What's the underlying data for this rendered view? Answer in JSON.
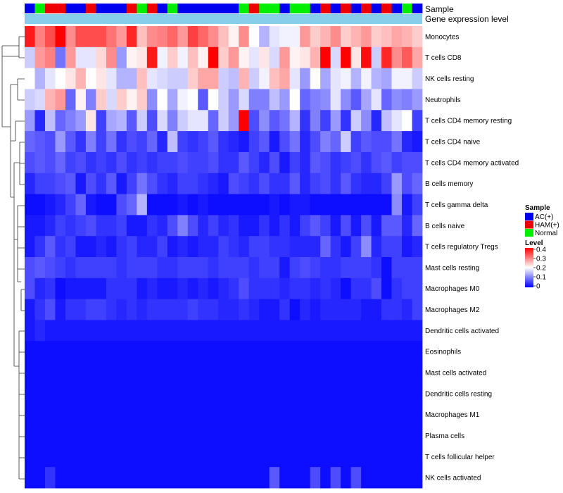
{
  "chart_data": {
    "type": "heatmap",
    "title": "",
    "annotation_labels": [
      "Sample",
      "Gene expression level"
    ],
    "sample_legend": {
      "title": "Sample",
      "entries": [
        {
          "name": "AC(+)",
          "color": "#0000EE"
        },
        {
          "name": "HAM(+)",
          "color": "#EE0000"
        },
        {
          "name": "Normal",
          "color": "#00EE00"
        }
      ]
    },
    "level_legend": {
      "title": "Level",
      "ticks": [
        "0.4",
        "0.3",
        "0.2",
        "0.1",
        "0"
      ],
      "colors": [
        "#FF0000",
        "#FFFFFF",
        "#0000FF"
      ],
      "range": [
        0,
        0.4
      ]
    },
    "expression_bar_color": "#87CEEB",
    "samples": [
      "AC(+)",
      "Normal",
      "HAM(+)",
      "HAM(+)",
      "AC(+)",
      "AC(+)",
      "HAM(+)",
      "AC(+)",
      "AC(+)",
      "AC(+)",
      "HAM(+)",
      "Normal",
      "HAM(+)",
      "AC(+)",
      "Normal",
      "AC(+)",
      "AC(+)",
      "AC(+)",
      "AC(+)",
      "AC(+)",
      "AC(+)",
      "Normal",
      "HAM(+)",
      "Normal",
      "Normal",
      "AC(+)",
      "Normal",
      "Normal",
      "AC(+)",
      "HAM(+)",
      "AC(+)",
      "HAM(+)",
      "AC(+)",
      "HAM(+)",
      "AC(+)",
      "HAM(+)",
      "AC(+)",
      "Normal",
      "AC(+)"
    ],
    "rows": [
      {
        "name": "Monocytes",
        "values": [
          0.38,
          0.3,
          0.34,
          0.4,
          0.29,
          0.34,
          0.34,
          0.34,
          0.31,
          0.28,
          0.37,
          0.25,
          0.29,
          0.3,
          0.32,
          0.28,
          0.35,
          0.32,
          0.29,
          0.25,
          0.21,
          0.29,
          0.2,
          0.14,
          0.18,
          0.19,
          0.19,
          0.28,
          0.24,
          0.26,
          0.29,
          0.24,
          0.26,
          0.28,
          0.24,
          0.25,
          0.27,
          0.26,
          0.24
        ]
      },
      {
        "name": "T cells CD8",
        "values": [
          0.16,
          0.28,
          0.3,
          0.09,
          0.28,
          0.18,
          0.18,
          0.23,
          0.29,
          0.12,
          0.21,
          0.22,
          0.38,
          0.19,
          0.24,
          0.19,
          0.25,
          0.21,
          0.4,
          0.24,
          0.28,
          0.21,
          0.18,
          0.22,
          0.17,
          0.28,
          0.21,
          0.22,
          0.26,
          0.4,
          0.17,
          0.4,
          0.22,
          0.39,
          0.16,
          0.37,
          0.29,
          0.33,
          0.27
        ]
      },
      {
        "name": "NK cells resting",
        "values": [
          0.2,
          0.14,
          0.18,
          0.2,
          0.22,
          0.26,
          0.2,
          0.22,
          0.18,
          0.14,
          0.14,
          0.25,
          0.18,
          0.17,
          0.16,
          0.16,
          0.24,
          0.27,
          0.27,
          0.16,
          0.15,
          0.26,
          0.16,
          0.19,
          0.25,
          0.27,
          0.18,
          0.12,
          0.2,
          0.13,
          0.18,
          0.19,
          0.14,
          0.19,
          0.14,
          0.13,
          0.19,
          0.19,
          0.16
        ]
      },
      {
        "name": "Neutrophils",
        "values": [
          0.16,
          0.17,
          0.26,
          0.28,
          0.08,
          0.21,
          0.1,
          0.24,
          0.17,
          0.24,
          0.21,
          0.24,
          0.11,
          0.2,
          0.13,
          0.19,
          0.2,
          0.07,
          0.2,
          0.16,
          0.12,
          0.17,
          0.1,
          0.1,
          0.15,
          0.12,
          0.2,
          0.08,
          0.1,
          0.11,
          0.18,
          0.11,
          0.07,
          0.13,
          0.18,
          0.08,
          0.11,
          0.1,
          0.12
        ]
      },
      {
        "name": "T cells CD4 memory resting",
        "values": [
          0.12,
          0.03,
          0.15,
          0.08,
          0.1,
          0.12,
          0.22,
          0.05,
          0.13,
          0.14,
          0.07,
          0.16,
          0.06,
          0.17,
          0.1,
          0.16,
          0.18,
          0.18,
          0.08,
          0.16,
          0.12,
          0.4,
          0.06,
          0.11,
          0.07,
          0.09,
          0.14,
          0.04,
          0.1,
          0.05,
          0.12,
          0.04,
          0.16,
          0.11,
          0.03,
          0.15,
          0.18,
          0.2,
          0.05
        ]
      },
      {
        "name": "T cells CD4 naive",
        "values": [
          0.08,
          0.07,
          0.06,
          0.12,
          0.07,
          0.04,
          0.1,
          0.05,
          0.09,
          0.04,
          0.06,
          0.05,
          0.08,
          0.03,
          0.15,
          0.05,
          0.04,
          0.05,
          0.07,
          0.04,
          0.03,
          0.02,
          0.05,
          0.07,
          0.02,
          0.06,
          0.09,
          0.03,
          0.06,
          0.1,
          0.08,
          0.16,
          0.05,
          0.07,
          0.06,
          0.06,
          0.09,
          0.03,
          0.02
        ]
      },
      {
        "name": "T cells CD4 memory activated",
        "values": [
          0.06,
          0.07,
          0.06,
          0.08,
          0.05,
          0.06,
          0.04,
          0.05,
          0.04,
          0.06,
          0.04,
          0.05,
          0.04,
          0.05,
          0.05,
          0.06,
          0.05,
          0.05,
          0.06,
          0.04,
          0.04,
          0.07,
          0.05,
          0.03,
          0.06,
          0.02,
          0.05,
          0.03,
          0.07,
          0.06,
          0.04,
          0.05,
          0.06,
          0.04,
          0.06,
          0.07,
          0.05,
          0.06,
          0.06
        ]
      },
      {
        "name": "B cells memory",
        "values": [
          0.03,
          0.05,
          0.05,
          0.06,
          0.07,
          0.02,
          0.06,
          0.04,
          0.07,
          0.02,
          0.05,
          0.09,
          0.06,
          0.04,
          0.03,
          0.05,
          0.05,
          0.04,
          0.03,
          0.02,
          0.06,
          0.05,
          0.04,
          0.06,
          0.04,
          0.04,
          0.07,
          0.03,
          0.05,
          0.06,
          0.04,
          0.07,
          0.04,
          0.03,
          0.03,
          0.05,
          0.12,
          0.06,
          0.08
        ]
      },
      {
        "name": "T cells gamma delta",
        "values": [
          0.01,
          0.01,
          0.02,
          0.03,
          0.05,
          0.08,
          0.02,
          0.01,
          0.01,
          0.06,
          0.08,
          0.14,
          0.01,
          0.01,
          0.01,
          0.02,
          0.01,
          0.02,
          0.01,
          0.01,
          0.01,
          0.01,
          0.01,
          0.01,
          0.02,
          0.01,
          0.02,
          0.02,
          0.01,
          0.01,
          0.01,
          0.01,
          0.01,
          0.01,
          0.01,
          0.01,
          0.11,
          0.02,
          0.05
        ]
      },
      {
        "name": "B cells naive",
        "values": [
          0.02,
          0.02,
          0.03,
          0.05,
          0.04,
          0.05,
          0.06,
          0.04,
          0.04,
          0.05,
          0.02,
          0.02,
          0.04,
          0.03,
          0.06,
          0.1,
          0.06,
          0.03,
          0.05,
          0.03,
          0.04,
          0.02,
          0.02,
          0.04,
          0.02,
          0.04,
          0.02,
          0.05,
          0.07,
          0.05,
          0.02,
          0.06,
          0.02,
          0.06,
          0.02,
          0.07,
          0.07,
          0.03,
          0.08
        ]
      },
      {
        "name": "T cells regulatory  Tregs",
        "values": [
          0.02,
          0.04,
          0.07,
          0.04,
          0.05,
          0.02,
          0.02,
          0.03,
          0.02,
          0.04,
          0.05,
          0.03,
          0.03,
          0.05,
          0.02,
          0.03,
          0.02,
          0.03,
          0.03,
          0.05,
          0.04,
          0.03,
          0.05,
          0.05,
          0.04,
          0.04,
          0.03,
          0.03,
          0.03,
          0.08,
          0.04,
          0.02,
          0.05,
          0.11,
          0.03,
          0.05,
          0.05,
          0.02,
          0.03
        ]
      },
      {
        "name": "Mast cells resting",
        "values": [
          0.06,
          0.07,
          0.06,
          0.05,
          0.04,
          0.05,
          0.05,
          0.05,
          0.05,
          0.04,
          0.05,
          0.05,
          0.05,
          0.04,
          0.04,
          0.05,
          0.05,
          0.05,
          0.04,
          0.05,
          0.05,
          0.05,
          0.04,
          0.05,
          0.05,
          0.02,
          0.05,
          0.06,
          0.05,
          0.04,
          0.04,
          0.05,
          0.05,
          0.05,
          0.04,
          0.01,
          0.05,
          0.05,
          0.05
        ]
      },
      {
        "name": "Macrophages M0",
        "values": [
          0.06,
          0.03,
          0.04,
          0.01,
          0.02,
          0.02,
          0.02,
          0.02,
          0.04,
          0.04,
          0.04,
          0.02,
          0.03,
          0.02,
          0.02,
          0.03,
          0.02,
          0.03,
          0.02,
          0.03,
          0.04,
          0.06,
          0.04,
          0.04,
          0.04,
          0.03,
          0.04,
          0.04,
          0.03,
          0.04,
          0.03,
          0.01,
          0.04,
          0.04,
          0.06,
          0.01,
          0.04,
          0.05,
          0.05
        ]
      },
      {
        "name": "Macrophages M2",
        "values": [
          0.02,
          0.04,
          0.06,
          0.02,
          0.04,
          0.04,
          0.05,
          0.05,
          0.04,
          0.03,
          0.04,
          0.03,
          0.04,
          0.04,
          0.04,
          0.04,
          0.05,
          0.04,
          0.04,
          0.03,
          0.03,
          0.04,
          0.03,
          0.02,
          0.02,
          0.04,
          0.01,
          0.03,
          0.02,
          0.03,
          0.03,
          0.03,
          0.03,
          0.02,
          0.02,
          0.04,
          0.04,
          0.03,
          0.05
        ]
      },
      {
        "name": "Dendritic cells activated",
        "values": [
          0.02,
          0.03,
          0.02,
          0.02,
          0.02,
          0.02,
          0.02,
          0.02,
          0.02,
          0.02,
          0.02,
          0.02,
          0.02,
          0.02,
          0.02,
          0.02,
          0.02,
          0.02,
          0.02,
          0.02,
          0.02,
          0.02,
          0.02,
          0.02,
          0.02,
          0.02,
          0.02,
          0.02,
          0.02,
          0.02,
          0.02,
          0.02,
          0.02,
          0.02,
          0.02,
          0.02,
          0.02,
          0.02,
          0.02
        ]
      },
      {
        "name": "Eosinophils",
        "values": [
          0.01,
          0.01,
          0.01,
          0.01,
          0.01,
          0.01,
          0.01,
          0.01,
          0.01,
          0.01,
          0.01,
          0.01,
          0.01,
          0.01,
          0.01,
          0.01,
          0.01,
          0.01,
          0.01,
          0.01,
          0.01,
          0.01,
          0.01,
          0.01,
          0.01,
          0.01,
          0.01,
          0.01,
          0.01,
          0.01,
          0.01,
          0.01,
          0.01,
          0.01,
          0.01,
          0.01,
          0.01,
          0.01,
          0.01
        ]
      },
      {
        "name": "Mast cells activated",
        "values": [
          0.01,
          0.01,
          0.01,
          0.01,
          0.01,
          0.01,
          0.01,
          0.01,
          0.01,
          0.01,
          0.01,
          0.01,
          0.01,
          0.01,
          0.01,
          0.01,
          0.01,
          0.01,
          0.01,
          0.01,
          0.01,
          0.01,
          0.01,
          0.01,
          0.01,
          0.01,
          0.01,
          0.01,
          0.01,
          0.01,
          0.01,
          0.01,
          0.01,
          0.01,
          0.01,
          0.01,
          0.01,
          0.01,
          0.01
        ]
      },
      {
        "name": "Dendritic cells resting",
        "values": [
          0.01,
          0.01,
          0.01,
          0.01,
          0.01,
          0.01,
          0.01,
          0.01,
          0.01,
          0.01,
          0.01,
          0.01,
          0.01,
          0.01,
          0.01,
          0.01,
          0.01,
          0.01,
          0.01,
          0.01,
          0.01,
          0.01,
          0.01,
          0.01,
          0.01,
          0.01,
          0.01,
          0.01,
          0.01,
          0.01,
          0.01,
          0.01,
          0.01,
          0.01,
          0.01,
          0.01,
          0.01,
          0.01,
          0.01
        ]
      },
      {
        "name": "Macrophages M1",
        "values": [
          0.01,
          0.01,
          0.01,
          0.01,
          0.01,
          0.01,
          0.01,
          0.01,
          0.01,
          0.01,
          0.01,
          0.01,
          0.01,
          0.01,
          0.01,
          0.01,
          0.01,
          0.01,
          0.01,
          0.01,
          0.01,
          0.01,
          0.01,
          0.01,
          0.01,
          0.01,
          0.01,
          0.01,
          0.01,
          0.01,
          0.01,
          0.01,
          0.01,
          0.01,
          0.01,
          0.01,
          0.01,
          0.01,
          0.01
        ]
      },
      {
        "name": "Plasma cells",
        "values": [
          0.01,
          0.01,
          0.01,
          0.01,
          0.01,
          0.01,
          0.01,
          0.01,
          0.01,
          0.01,
          0.01,
          0.01,
          0.01,
          0.01,
          0.01,
          0.01,
          0.01,
          0.01,
          0.01,
          0.01,
          0.01,
          0.01,
          0.01,
          0.01,
          0.01,
          0.01,
          0.01,
          0.01,
          0.01,
          0.01,
          0.01,
          0.01,
          0.01,
          0.01,
          0.01,
          0.01,
          0.01,
          0.01,
          0.01
        ]
      },
      {
        "name": "T cells follicular helper",
        "values": [
          0.01,
          0.01,
          0.01,
          0.01,
          0.01,
          0.01,
          0.01,
          0.01,
          0.01,
          0.01,
          0.01,
          0.01,
          0.01,
          0.01,
          0.01,
          0.01,
          0.01,
          0.01,
          0.01,
          0.01,
          0.01,
          0.01,
          0.01,
          0.01,
          0.01,
          0.01,
          0.01,
          0.01,
          0.01,
          0.01,
          0.01,
          0.01,
          0.01,
          0.01,
          0.01,
          0.01,
          0.01,
          0.01,
          0.01
        ]
      },
      {
        "name": "NK cells activated",
        "values": [
          0.01,
          0.01,
          0.04,
          0.01,
          0.01,
          0.01,
          0.01,
          0.01,
          0.01,
          0.01,
          0.01,
          0.01,
          0.01,
          0.01,
          0.01,
          0.01,
          0.01,
          0.01,
          0.01,
          0.01,
          0.01,
          0.01,
          0.01,
          0.01,
          0.07,
          0.01,
          0.01,
          0.01,
          0.06,
          0.01,
          0.06,
          0.01,
          0.06,
          0.01,
          0.01,
          0.01,
          0.01,
          0.01,
          0.01
        ]
      }
    ]
  }
}
